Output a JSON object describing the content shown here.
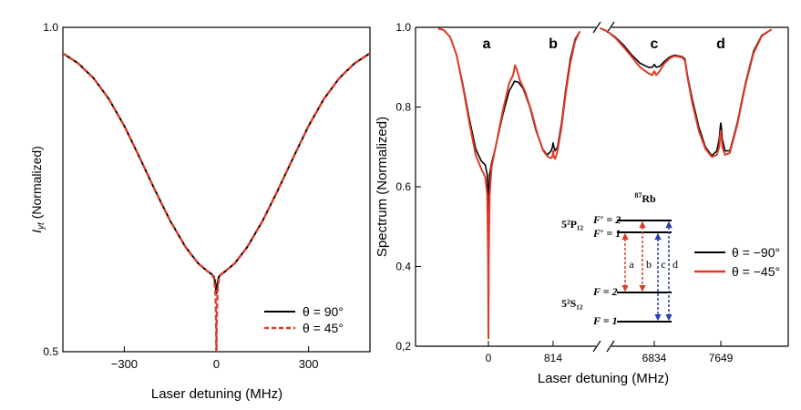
{
  "chart_data": [
    {
      "type": "line",
      "xlabel": "Laser detuning (MHz)",
      "ylabel": "I_yt (Normalized)",
      "ylabel_main": "I",
      "ylabel_sub": "yt",
      "ylabel_rest": " (Normalized)",
      "xlim": [
        -500,
        500
      ],
      "ylim": [
        0.5,
        1.0
      ],
      "yscale": "log",
      "xticks": [
        -300,
        0,
        300
      ],
      "xtick_labels": [
        "−300",
        "0",
        "300"
      ],
      "yticks": [
        1.0,
        0.5
      ],
      "ytick_labels": [
        "1.0",
        "0.5"
      ],
      "legend_position": "bottom-right",
      "series": [
        {
          "name": "θ = 90°",
          "color": "#000000",
          "style": "solid",
          "points": [
            [
              -500,
              0.946
            ],
            [
              -450,
              0.926
            ],
            [
              -400,
              0.897
            ],
            [
              -350,
              0.858
            ],
            [
              -300,
              0.81
            ],
            [
              -250,
              0.757
            ],
            [
              -200,
              0.706
            ],
            [
              -150,
              0.661
            ],
            [
              -100,
              0.625
            ],
            [
              -60,
              0.604
            ],
            [
              -30,
              0.594
            ],
            [
              -15,
              0.59
            ],
            [
              -8,
              0.587
            ],
            [
              -4,
              0.58
            ],
            [
              -2,
              0.572
            ],
            [
              0,
              0.566
            ],
            [
              2,
              0.572
            ],
            [
              4,
              0.58
            ],
            [
              8,
              0.587
            ],
            [
              15,
              0.59
            ],
            [
              30,
              0.594
            ],
            [
              60,
              0.604
            ],
            [
              100,
              0.625
            ],
            [
              150,
              0.661
            ],
            [
              200,
              0.706
            ],
            [
              250,
              0.757
            ],
            [
              300,
              0.81
            ],
            [
              350,
              0.858
            ],
            [
              400,
              0.897
            ],
            [
              450,
              0.926
            ],
            [
              500,
              0.946
            ]
          ]
        },
        {
          "name": "θ = 45°",
          "color": "#e03a28",
          "style": "dashed",
          "points": [
            [
              -500,
              0.946
            ],
            [
              -450,
              0.926
            ],
            [
              -400,
              0.897
            ],
            [
              -350,
              0.858
            ],
            [
              -300,
              0.81
            ],
            [
              -250,
              0.757
            ],
            [
              -200,
              0.706
            ],
            [
              -150,
              0.661
            ],
            [
              -100,
              0.625
            ],
            [
              -60,
              0.604
            ],
            [
              -30,
              0.594
            ],
            [
              -15,
              0.59
            ],
            [
              -8,
              0.585
            ],
            [
              -4,
              0.57
            ],
            [
              -2,
              0.55
            ],
            [
              -1,
              0.53
            ],
            [
              0,
              0.486
            ],
            [
              1,
              0.53
            ],
            [
              2,
              0.55
            ],
            [
              4,
              0.57
            ],
            [
              8,
              0.585
            ],
            [
              15,
              0.59
            ],
            [
              30,
              0.594
            ],
            [
              60,
              0.604
            ],
            [
              100,
              0.625
            ],
            [
              150,
              0.661
            ],
            [
              200,
              0.706
            ],
            [
              250,
              0.757
            ],
            [
              300,
              0.81
            ],
            [
              350,
              0.858
            ],
            [
              400,
              0.897
            ],
            [
              450,
              0.926
            ],
            [
              500,
              0.946
            ]
          ]
        }
      ]
    },
    {
      "type": "line",
      "xlabel": "Laser detuning (MHz)",
      "ylabel": "Spectrum (Normalized)",
      "axis_break_between": [
        "814",
        "6834"
      ],
      "ylim": [
        0.2,
        1.0
      ],
      "yticks": [
        0.2,
        0.4,
        0.6,
        0.8,
        1.0
      ],
      "ytick_labels": [
        "0,2",
        "0.4",
        "0.6",
        "0.8",
        "1.0"
      ],
      "xticks": [
        0,
        814,
        6834,
        7649
      ],
      "xtick_labels": [
        "0",
        "814",
        "6834",
        "7649"
      ],
      "peak_labels": [
        "a",
        "b",
        "c",
        "d"
      ],
      "legend_position": "right",
      "series": [
        {
          "name": "θ = −90°",
          "color": "#000000",
          "segments": [
            [
              [
                -630,
                0.997
              ],
              [
                -560,
                0.993
              ],
              [
                -480,
                0.975
              ],
              [
                -400,
                0.93
              ],
              [
                -320,
                0.855
              ],
              [
                -240,
                0.77
              ],
              [
                -160,
                0.695
              ],
              [
                -90,
                0.665
              ],
              [
                -40,
                0.655
              ],
              [
                -15,
                0.63
              ],
              [
                -5,
                0.58
              ],
              [
                0,
                0.54
              ],
              [
                5,
                0.58
              ],
              [
                15,
                0.63
              ],
              [
                40,
                0.66
              ],
              [
                90,
                0.7
              ],
              [
                180,
                0.78
              ],
              [
                260,
                0.84
              ],
              [
                330,
                0.865
              ],
              [
                380,
                0.862
              ],
              [
                440,
                0.845
              ],
              [
                520,
                0.8
              ],
              [
                600,
                0.74
              ],
              [
                680,
                0.695
              ],
              [
                740,
                0.68
              ],
              [
                790,
                0.69
              ],
              [
                805,
                0.7
              ],
              [
                814,
                0.71
              ],
              [
                823,
                0.7
              ],
              [
                838,
                0.69
              ],
              [
                870,
                0.7
              ],
              [
                920,
                0.76
              ],
              [
                970,
                0.84
              ],
              [
                1030,
                0.92
              ],
              [
                1090,
                0.97
              ],
              [
                1150,
                0.99
              ]
            ],
            [
              [
                6170,
                0.998
              ],
              [
                6260,
                0.99
              ],
              [
                6360,
                0.975
              ],
              [
                6460,
                0.955
              ],
              [
                6560,
                0.93
              ],
              [
                6660,
                0.91
              ],
              [
                6760,
                0.9
              ],
              [
                6810,
                0.9
              ],
              [
                6834,
                0.907
              ],
              [
                6858,
                0.9
              ],
              [
                6900,
                0.902
              ],
              [
                6960,
                0.915
              ],
              [
                7020,
                0.925
              ],
              [
                7080,
                0.93
              ],
              [
                7140,
                0.928
              ],
              [
                7180,
                0.926
              ],
              [
                7210,
                0.92
              ],
              [
                7240,
                0.88
              ],
              [
                7300,
                0.82
              ],
              [
                7380,
                0.75
              ],
              [
                7460,
                0.7
              ],
              [
                7540,
                0.678
              ],
              [
                7600,
                0.69
              ],
              [
                7630,
                0.72
              ],
              [
                7642,
                0.75
              ],
              [
                7649,
                0.76
              ],
              [
                7656,
                0.75
              ],
              [
                7668,
                0.72
              ],
              [
                7700,
                0.69
              ],
              [
                7760,
                0.69
              ],
              [
                7850,
                0.76
              ],
              [
                7950,
                0.86
              ],
              [
                8050,
                0.94
              ],
              [
                8150,
                0.98
              ],
              [
                8270,
                0.995
              ]
            ]
          ]
        },
        {
          "name": "θ = −45°",
          "color": "#e03a28",
          "segments": [
            [
              [
                -630,
                0.997
              ],
              [
                -560,
                0.993
              ],
              [
                -480,
                0.975
              ],
              [
                -400,
                0.93
              ],
              [
                -320,
                0.85
              ],
              [
                -240,
                0.76
              ],
              [
                -160,
                0.68
              ],
              [
                -90,
                0.645
              ],
              [
                -40,
                0.625
              ],
              [
                -15,
                0.58
              ],
              [
                -5,
                0.42
              ],
              [
                -2,
                0.32
              ],
              [
                0,
                0.22
              ],
              [
                2,
                0.32
              ],
              [
                5,
                0.42
              ],
              [
                15,
                0.58
              ],
              [
                40,
                0.65
              ],
              [
                90,
                0.7
              ],
              [
                180,
                0.79
              ],
              [
                260,
                0.86
              ],
              [
                310,
                0.88
              ],
              [
                335,
                0.905
              ],
              [
                355,
                0.895
              ],
              [
                400,
                0.865
              ],
              [
                460,
                0.84
              ],
              [
                540,
                0.79
              ],
              [
                620,
                0.73
              ],
              [
                690,
                0.69
              ],
              [
                750,
                0.675
              ],
              [
                790,
                0.672
              ],
              [
                805,
                0.675
              ],
              [
                814,
                0.69
              ],
              [
                823,
                0.675
              ],
              [
                840,
                0.67
              ],
              [
                870,
                0.69
              ],
              [
                920,
                0.75
              ],
              [
                970,
                0.83
              ],
              [
                1030,
                0.91
              ],
              [
                1090,
                0.965
              ],
              [
                1150,
                0.99
              ]
            ],
            [
              [
                6170,
                0.998
              ],
              [
                6260,
                0.99
              ],
              [
                6360,
                0.973
              ],
              [
                6460,
                0.95
              ],
              [
                6560,
                0.925
              ],
              [
                6660,
                0.9
              ],
              [
                6760,
                0.885
              ],
              [
                6810,
                0.88
              ],
              [
                6834,
                0.89
              ],
              [
                6858,
                0.88
              ],
              [
                6900,
                0.89
              ],
              [
                6960,
                0.91
              ],
              [
                7020,
                0.922
              ],
              [
                7080,
                0.928
              ],
              [
                7140,
                0.926
              ],
              [
                7180,
                0.924
              ],
              [
                7210,
                0.916
              ],
              [
                7240,
                0.875
              ],
              [
                7300,
                0.81
              ],
              [
                7380,
                0.74
              ],
              [
                7460,
                0.695
              ],
              [
                7540,
                0.675
              ],
              [
                7600,
                0.68
              ],
              [
                7630,
                0.7
              ],
              [
                7642,
                0.73
              ],
              [
                7649,
                0.74
              ],
              [
                7656,
                0.73
              ],
              [
                7668,
                0.7
              ],
              [
                7700,
                0.68
              ],
              [
                7760,
                0.685
              ],
              [
                7850,
                0.755
              ],
              [
                7950,
                0.855
              ],
              [
                8050,
                0.935
              ],
              [
                8150,
                0.978
              ],
              [
                8270,
                0.995
              ]
            ]
          ]
        }
      ],
      "inset": {
        "title_sup": "87",
        "title_main": "Rb",
        "p_state": "5²P₁₂",
        "s_state": "5²S₁₂",
        "p_upper": "F′ = 2",
        "p_lower": "F′ = 1",
        "s_upper": "F = 2",
        "s_lower": "F = 1",
        "transition_labels": [
          "a",
          "b",
          "c",
          "d"
        ],
        "red_color": "#e03a28",
        "blue_color": "#2a3fb0"
      }
    }
  ]
}
